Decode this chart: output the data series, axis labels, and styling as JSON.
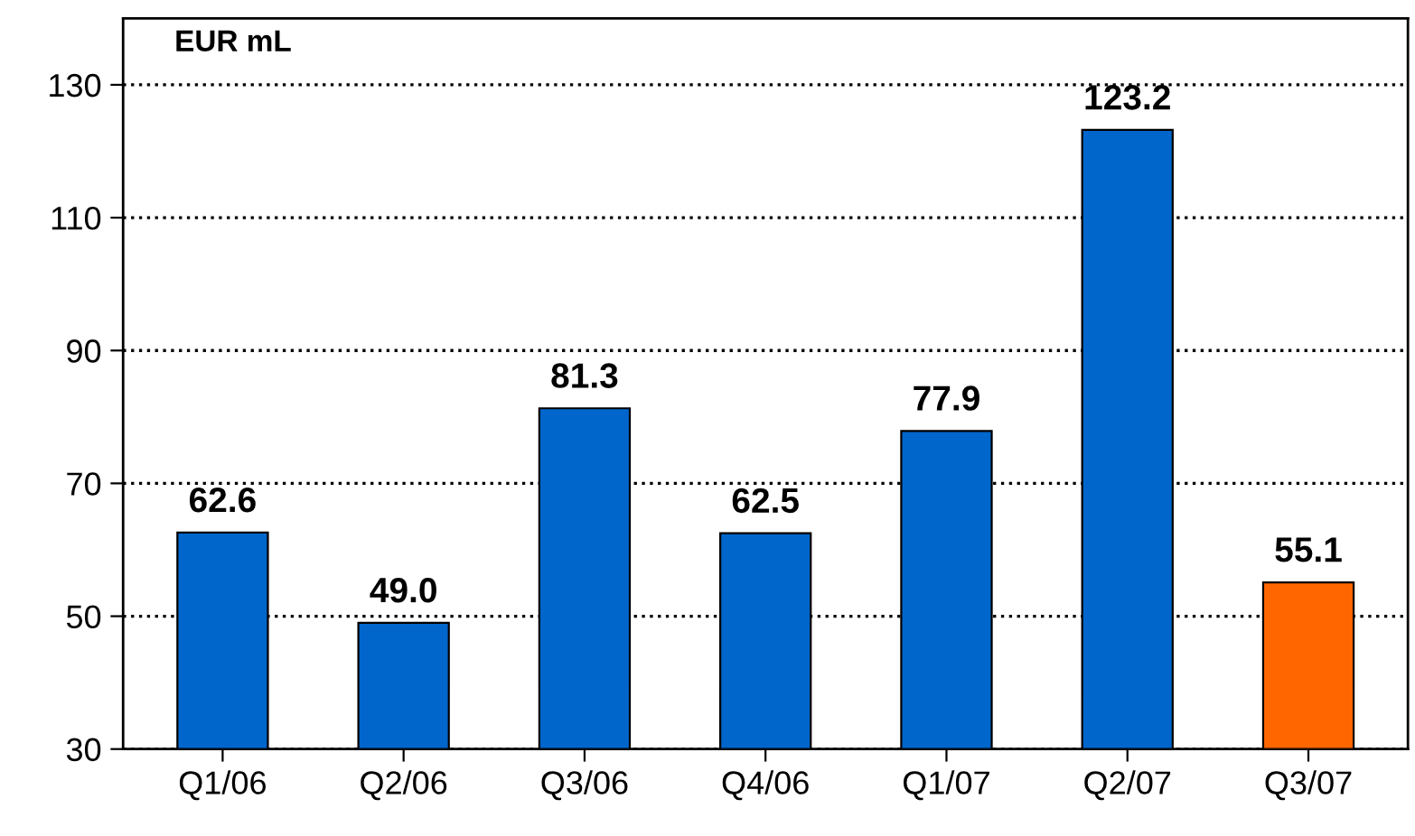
{
  "chart_data": {
    "type": "bar",
    "categories": [
      "Q1/06",
      "Q2/06",
      "Q3/06",
      "Q4/06",
      "Q1/07",
      "Q2/07",
      "Q3/07"
    ],
    "values": [
      62.6,
      49.0,
      81.3,
      62.5,
      77.9,
      123.2,
      55.1
    ],
    "colors": [
      "#0066cc",
      "#0066cc",
      "#0066cc",
      "#0066cc",
      "#0066cc",
      "#0066cc",
      "#ff6600"
    ],
    "ylim": [
      30,
      140
    ],
    "yticks": [
      30,
      50,
      70,
      90,
      110,
      130
    ],
    "value_labels": [
      "62.6",
      "49.0",
      "81.3",
      "62.5",
      "77.9",
      "123.2",
      "55.1"
    ],
    "grid": "y",
    "line_style": "dotted",
    "annotations": [
      "EUR mL"
    ]
  }
}
